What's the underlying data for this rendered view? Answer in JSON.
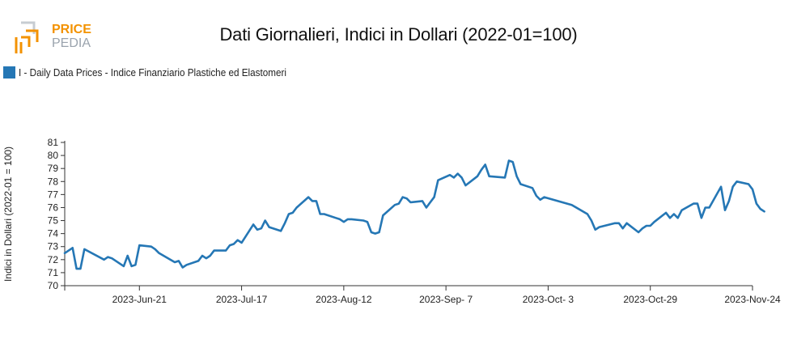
{
  "header": {
    "title": "Dati Giornalieri, Indici in Dollari (2022-01=100)",
    "logo_text_top": "PRICE",
    "logo_text_bottom": "PEDIA"
  },
  "colors": {
    "series": "#2577b5",
    "logo_orange": "#f39200",
    "logo_gray": "#9aa3ad"
  },
  "chart_data": {
    "type": "line",
    "title": "Dati Giornalieri, Indici in Dollari (2022-01=100)",
    "ylabel": "Indici in Dollari (2022-01 = 100)",
    "xlabel": "",
    "ylim": [
      70,
      81
    ],
    "yticks": [
      70,
      71,
      72,
      73,
      74,
      75,
      76,
      77,
      78,
      79,
      80,
      81
    ],
    "xlim": [
      "2023-06-02",
      "2023-11-24"
    ],
    "xticks": [
      {
        "date": "2023-06-21",
        "label": "2023-Jun-21"
      },
      {
        "date": "2023-07-17",
        "label": "2023-Jul-17"
      },
      {
        "date": "2023-08-12",
        "label": "2023-Aug-12"
      },
      {
        "date": "2023-09-07",
        "label": "2023-Sep- 7"
      },
      {
        "date": "2023-10-03",
        "label": "2023-Oct- 3"
      },
      {
        "date": "2023-10-29",
        "label": "2023-Oct-29"
      },
      {
        "date": "2023-11-24",
        "label": "2023-Nov-24"
      }
    ],
    "legend": "top-left",
    "series": [
      {
        "name": "I - Daily Data Prices - Indice Finanziario Plastiche ed Elastomeri",
        "points": [
          [
            "2023-06-02",
            72.5
          ],
          [
            "2023-06-04",
            72.9
          ],
          [
            "2023-06-05",
            71.3
          ],
          [
            "2023-06-06",
            71.3
          ],
          [
            "2023-06-07",
            72.8
          ],
          [
            "2023-06-12",
            72.0
          ],
          [
            "2023-06-13",
            72.2
          ],
          [
            "2023-06-14",
            72.1
          ],
          [
            "2023-06-17",
            71.5
          ],
          [
            "2023-06-18",
            72.3
          ],
          [
            "2023-06-19",
            71.5
          ],
          [
            "2023-06-20",
            71.6
          ],
          [
            "2023-06-21",
            73.1
          ],
          [
            "2023-06-24",
            73.0
          ],
          [
            "2023-06-25",
            72.8
          ],
          [
            "2023-06-26",
            72.5
          ],
          [
            "2023-06-30",
            71.8
          ],
          [
            "2023-07-01",
            71.9
          ],
          [
            "2023-07-02",
            71.4
          ],
          [
            "2023-07-03",
            71.6
          ],
          [
            "2023-07-06",
            71.9
          ],
          [
            "2023-07-07",
            72.3
          ],
          [
            "2023-07-08",
            72.1
          ],
          [
            "2023-07-09",
            72.3
          ],
          [
            "2023-07-10",
            72.7
          ],
          [
            "2023-07-13",
            72.7
          ],
          [
            "2023-07-14",
            73.1
          ],
          [
            "2023-07-15",
            73.2
          ],
          [
            "2023-07-16",
            73.5
          ],
          [
            "2023-07-17",
            73.3
          ],
          [
            "2023-07-20",
            74.7
          ],
          [
            "2023-07-21",
            74.3
          ],
          [
            "2023-07-22",
            74.4
          ],
          [
            "2023-07-23",
            75.0
          ],
          [
            "2023-07-24",
            74.5
          ],
          [
            "2023-07-27",
            74.2
          ],
          [
            "2023-07-28",
            74.8
          ],
          [
            "2023-07-29",
            75.5
          ],
          [
            "2023-07-30",
            75.6
          ],
          [
            "2023-07-31",
            76.0
          ],
          [
            "2023-08-03",
            76.8
          ],
          [
            "2023-08-04",
            76.5
          ],
          [
            "2023-08-05",
            76.5
          ],
          [
            "2023-08-06",
            75.5
          ],
          [
            "2023-08-07",
            75.5
          ],
          [
            "2023-08-10",
            75.2
          ],
          [
            "2023-08-11",
            75.1
          ],
          [
            "2023-08-12",
            74.9
          ],
          [
            "2023-08-13",
            75.1
          ],
          [
            "2023-08-14",
            75.1
          ],
          [
            "2023-08-17",
            75.0
          ],
          [
            "2023-08-18",
            74.9
          ],
          [
            "2023-08-19",
            74.1
          ],
          [
            "2023-08-20",
            74.0
          ],
          [
            "2023-08-21",
            74.1
          ],
          [
            "2023-08-22",
            75.4
          ],
          [
            "2023-08-25",
            76.2
          ],
          [
            "2023-08-26",
            76.3
          ],
          [
            "2023-08-27",
            76.8
          ],
          [
            "2023-08-28",
            76.7
          ],
          [
            "2023-08-29",
            76.4
          ],
          [
            "2023-09-01",
            76.5
          ],
          [
            "2023-09-02",
            76.0
          ],
          [
            "2023-09-03",
            76.4
          ],
          [
            "2023-09-04",
            76.8
          ],
          [
            "2023-09-05",
            78.1
          ],
          [
            "2023-09-08",
            78.5
          ],
          [
            "2023-09-09",
            78.3
          ],
          [
            "2023-09-10",
            78.6
          ],
          [
            "2023-09-11",
            78.3
          ],
          [
            "2023-09-12",
            77.7
          ],
          [
            "2023-09-15",
            78.4
          ],
          [
            "2023-09-16",
            78.9
          ],
          [
            "2023-09-17",
            79.3
          ],
          [
            "2023-09-18",
            78.4
          ],
          [
            "2023-09-22",
            78.3
          ],
          [
            "2023-09-23",
            79.6
          ],
          [
            "2023-09-24",
            79.5
          ],
          [
            "2023-09-25",
            78.4
          ],
          [
            "2023-09-26",
            77.8
          ],
          [
            "2023-09-29",
            77.5
          ],
          [
            "2023-09-30",
            76.9
          ],
          [
            "2023-10-01",
            76.6
          ],
          [
            "2023-10-02",
            76.8
          ],
          [
            "2023-10-09",
            76.2
          ],
          [
            "2023-10-13",
            75.5
          ],
          [
            "2023-10-14",
            75.0
          ],
          [
            "2023-10-15",
            74.3
          ],
          [
            "2023-10-16",
            74.5
          ],
          [
            "2023-10-20",
            74.8
          ],
          [
            "2023-10-21",
            74.8
          ],
          [
            "2023-10-22",
            74.4
          ],
          [
            "2023-10-23",
            74.8
          ],
          [
            "2023-10-26",
            74.1
          ],
          [
            "2023-10-27",
            74.4
          ],
          [
            "2023-10-28",
            74.6
          ],
          [
            "2023-10-29",
            74.6
          ],
          [
            "2023-10-30",
            74.9
          ],
          [
            "2023-11-02",
            75.6
          ],
          [
            "2023-11-03",
            75.2
          ],
          [
            "2023-11-04",
            75.5
          ],
          [
            "2023-11-05",
            75.2
          ],
          [
            "2023-11-06",
            75.8
          ],
          [
            "2023-11-09",
            76.3
          ],
          [
            "2023-11-10",
            76.3
          ],
          [
            "2023-11-11",
            75.2
          ],
          [
            "2023-11-12",
            76.0
          ],
          [
            "2023-11-13",
            76.0
          ],
          [
            "2023-11-16",
            77.6
          ],
          [
            "2023-11-17",
            75.8
          ],
          [
            "2023-11-18",
            76.5
          ],
          [
            "2023-11-19",
            77.6
          ],
          [
            "2023-11-20",
            78.0
          ],
          [
            "2023-11-23",
            77.8
          ],
          [
            "2023-11-24",
            77.4
          ],
          [
            "2023-11-25",
            76.3
          ],
          [
            "2023-11-26",
            75.9
          ],
          [
            "2023-11-27",
            75.7
          ]
        ]
      }
    ]
  }
}
